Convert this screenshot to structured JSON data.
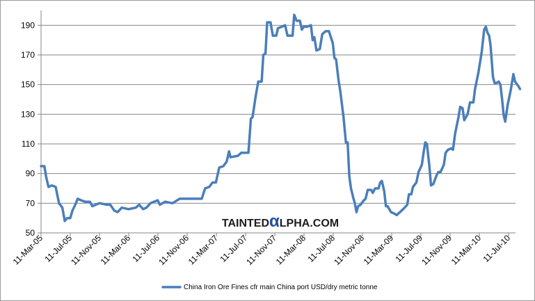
{
  "chart_data": {
    "type": "line",
    "title": "",
    "xlabel": "",
    "ylabel": "",
    "ylim": [
      50,
      200
    ],
    "y_ticks": [
      50,
      70,
      90,
      110,
      130,
      150,
      170,
      190
    ],
    "x_ticks": [
      "11-Mar-05",
      "11-Jul-05",
      "11-Nov-05",
      "11-Mar-06",
      "11-Jul-06",
      "11-Nov-06",
      "11-Mar-07",
      "11-Jul-07",
      "11-Nov-07",
      "11-Mar-08",
      "11-Jul-08",
      "11-Nov-08",
      "11-Mar-09",
      "11-Jul-09",
      "11-Nov-09",
      "11-Mar-10",
      "11-Jul-10"
    ],
    "grid": "horizontal",
    "legend_position": "bottom",
    "series": [
      {
        "name": "China Iron Ore Fines cfr main China port USD/dry metric tonne",
        "color": "#4a7ebb",
        "points": [
          [
            "2005-03-11",
            95
          ],
          [
            "2005-03-25",
            95
          ],
          [
            "2005-04-01",
            88
          ],
          [
            "2005-04-11",
            81
          ],
          [
            "2005-04-25",
            82
          ],
          [
            "2005-05-11",
            81
          ],
          [
            "2005-05-25",
            70
          ],
          [
            "2005-06-08",
            67
          ],
          [
            "2005-06-18",
            58
          ],
          [
            "2005-06-28",
            60
          ],
          [
            "2005-07-11",
            60
          ],
          [
            "2005-07-20",
            65
          ],
          [
            "2005-08-01",
            69
          ],
          [
            "2005-08-11",
            73
          ],
          [
            "2005-08-25",
            72
          ],
          [
            "2005-09-11",
            71
          ],
          [
            "2005-10-01",
            71
          ],
          [
            "2005-10-11",
            68
          ],
          [
            "2005-10-25",
            69
          ],
          [
            "2005-11-11",
            70
          ],
          [
            "2005-12-11",
            69
          ],
          [
            "2005-12-25",
            69
          ],
          [
            "2006-01-11",
            65
          ],
          [
            "2006-01-25",
            64
          ],
          [
            "2006-02-11",
            67
          ],
          [
            "2006-03-11",
            66
          ],
          [
            "2006-04-11",
            67
          ],
          [
            "2006-04-25",
            69
          ],
          [
            "2006-05-11",
            66
          ],
          [
            "2006-05-25",
            67
          ],
          [
            "2006-06-11",
            70
          ],
          [
            "2006-07-11",
            72
          ],
          [
            "2006-07-20",
            69
          ],
          [
            "2006-08-11",
            71
          ],
          [
            "2006-09-11",
            70
          ],
          [
            "2006-10-11",
            73
          ],
          [
            "2006-11-11",
            73
          ],
          [
            "2006-12-11",
            73
          ],
          [
            "2007-01-11",
            73
          ],
          [
            "2007-01-25",
            80
          ],
          [
            "2007-02-11",
            81
          ],
          [
            "2007-02-25",
            84
          ],
          [
            "2007-03-11",
            84
          ],
          [
            "2007-03-25",
            94
          ],
          [
            "2007-04-11",
            95
          ],
          [
            "2007-04-25",
            98
          ],
          [
            "2007-05-05",
            105
          ],
          [
            "2007-05-11",
            101
          ],
          [
            "2007-06-11",
            102
          ],
          [
            "2007-06-25",
            104
          ],
          [
            "2007-07-11",
            104
          ],
          [
            "2007-07-25",
            104
          ],
          [
            "2007-08-04",
            127
          ],
          [
            "2007-08-11",
            128
          ],
          [
            "2007-08-25",
            143
          ],
          [
            "2007-09-04",
            152
          ],
          [
            "2007-09-18",
            152
          ],
          [
            "2007-09-25",
            170
          ],
          [
            "2007-10-04",
            171
          ],
          [
            "2007-10-11",
            192
          ],
          [
            "2007-10-25",
            192
          ],
          [
            "2007-11-04",
            183
          ],
          [
            "2007-11-18",
            183
          ],
          [
            "2007-11-25",
            188
          ],
          [
            "2007-12-11",
            189
          ],
          [
            "2007-12-25",
            190
          ],
          [
            "2008-01-04",
            183
          ],
          [
            "2008-01-25",
            183
          ],
          [
            "2008-02-01",
            197
          ],
          [
            "2008-02-11",
            193
          ],
          [
            "2008-02-25",
            193
          ],
          [
            "2008-03-04",
            187
          ],
          [
            "2008-03-11",
            189
          ],
          [
            "2008-03-25",
            189
          ],
          [
            "2008-04-11",
            190
          ],
          [
            "2008-04-18",
            180
          ],
          [
            "2008-04-25",
            182
          ],
          [
            "2008-05-04",
            173
          ],
          [
            "2008-05-18",
            174
          ],
          [
            "2008-05-28",
            184
          ],
          [
            "2008-06-11",
            186
          ],
          [
            "2008-06-25",
            186
          ],
          [
            "2008-07-11",
            178
          ],
          [
            "2008-07-18",
            168
          ],
          [
            "2008-07-25",
            167
          ],
          [
            "2008-08-04",
            153
          ],
          [
            "2008-08-11",
            146
          ],
          [
            "2008-08-25",
            128
          ],
          [
            "2008-09-04",
            111
          ],
          [
            "2008-09-11",
            111
          ],
          [
            "2008-09-18",
            88
          ],
          [
            "2008-09-25",
            80
          ],
          [
            "2008-10-04",
            74
          ],
          [
            "2008-10-11",
            70
          ],
          [
            "2008-10-18",
            64
          ],
          [
            "2008-10-25",
            68
          ],
          [
            "2008-11-04",
            69
          ],
          [
            "2008-11-18",
            72
          ],
          [
            "2008-11-25",
            73
          ],
          [
            "2008-12-04",
            79
          ],
          [
            "2008-12-18",
            79
          ],
          [
            "2008-12-25",
            77
          ],
          [
            "2009-01-04",
            80
          ],
          [
            "2009-01-18",
            80
          ],
          [
            "2009-01-25",
            84
          ],
          [
            "2009-02-01",
            85
          ],
          [
            "2009-02-11",
            78
          ],
          [
            "2009-02-18",
            68
          ],
          [
            "2009-02-25",
            68
          ],
          [
            "2009-03-11",
            64
          ],
          [
            "2009-03-25",
            63
          ],
          [
            "2009-04-04",
            62
          ],
          [
            "2009-04-18",
            64
          ],
          [
            "2009-05-01",
            66
          ],
          [
            "2009-05-18",
            69
          ],
          [
            "2009-05-25",
            76
          ],
          [
            "2009-06-04",
            76
          ],
          [
            "2009-06-11",
            81
          ],
          [
            "2009-06-25",
            84
          ],
          [
            "2009-07-04",
            91
          ],
          [
            "2009-07-18",
            96
          ],
          [
            "2009-07-25",
            104
          ],
          [
            "2009-08-01",
            111
          ],
          [
            "2009-08-08",
            110
          ],
          [
            "2009-08-18",
            96
          ],
          [
            "2009-08-25",
            82
          ],
          [
            "2009-09-04",
            83
          ],
          [
            "2009-09-18",
            89
          ],
          [
            "2009-09-25",
            91
          ],
          [
            "2009-10-04",
            91
          ],
          [
            "2009-10-18",
            96
          ],
          [
            "2009-10-25",
            104
          ],
          [
            "2009-11-04",
            106
          ],
          [
            "2009-11-18",
            107
          ],
          [
            "2009-11-25",
            106
          ],
          [
            "2009-12-04",
            117
          ],
          [
            "2009-12-18",
            128
          ],
          [
            "2009-12-25",
            135
          ],
          [
            "2010-01-04",
            134
          ],
          [
            "2010-01-11",
            126
          ],
          [
            "2010-01-25",
            130
          ],
          [
            "2010-02-04",
            138
          ],
          [
            "2010-02-18",
            138
          ],
          [
            "2010-02-25",
            147
          ],
          [
            "2010-03-11",
            158
          ],
          [
            "2010-03-25",
            172
          ],
          [
            "2010-04-04",
            187
          ],
          [
            "2010-04-11",
            189
          ],
          [
            "2010-04-18",
            185
          ],
          [
            "2010-04-25",
            183
          ],
          [
            "2010-05-01",
            176
          ],
          [
            "2010-05-11",
            155
          ],
          [
            "2010-05-18",
            151
          ],
          [
            "2010-05-25",
            151
          ],
          [
            "2010-06-04",
            152
          ],
          [
            "2010-06-11",
            150
          ],
          [
            "2010-06-18",
            140
          ],
          [
            "2010-06-25",
            129
          ],
          [
            "2010-07-01",
            125
          ],
          [
            "2010-07-11",
            136
          ],
          [
            "2010-07-25",
            147
          ],
          [
            "2010-08-04",
            157
          ],
          [
            "2010-08-11",
            152
          ],
          [
            "2010-08-25",
            149
          ],
          [
            "2010-09-01",
            147
          ]
        ]
      }
    ]
  },
  "watermark": {
    "text_before": "TAINTED",
    "glyph": "α",
    "text_after": "LPHA.COM",
    "text_color": "#1c1c1c",
    "glyph_color": "#1f4fa3"
  }
}
